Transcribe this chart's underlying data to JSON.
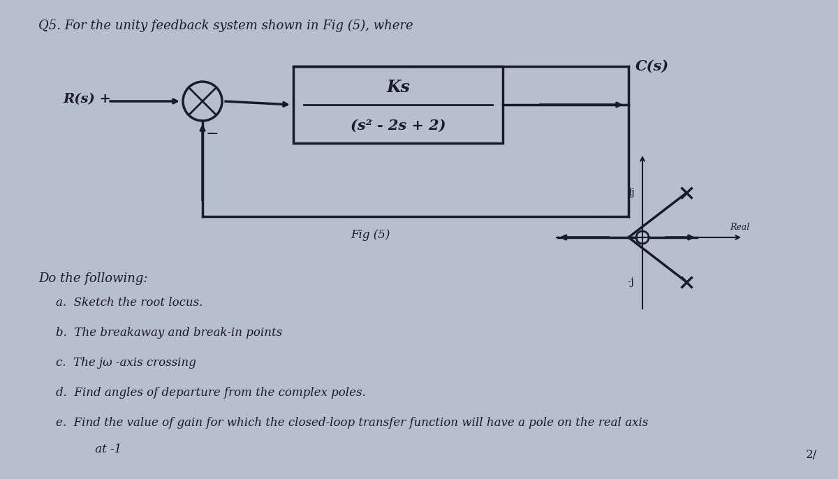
{
  "background_color": "#b8bfcc",
  "title_text": "Q5. For the unity feedback system shown in Fig (5), where",
  "title_fontsize": 13,
  "transfer_fn_top": "Ks",
  "transfer_fn_bottom": "(s² - 2s + 2)",
  "block_fontsize": 15,
  "Rs_label": "R(s) +",
  "Cs_label": "C(s)",
  "fig_label": "Fig (5)",
  "do_following_text": "Do the following:",
  "items": [
    "a.  Sketch the root locus.",
    "b.  The breakaway and break-in points",
    "c.  The jω -axis crossing",
    "d.  Find angles of departure from the complex poles.",
    "e.  Find the value of gain for which the closed-loop transfer function will have a pole on the real axis"
  ],
  "item_fontsize": 12,
  "at_minus1": "     at -1",
  "page_number": "2/",
  "diagram_color": "#1a1a2e"
}
